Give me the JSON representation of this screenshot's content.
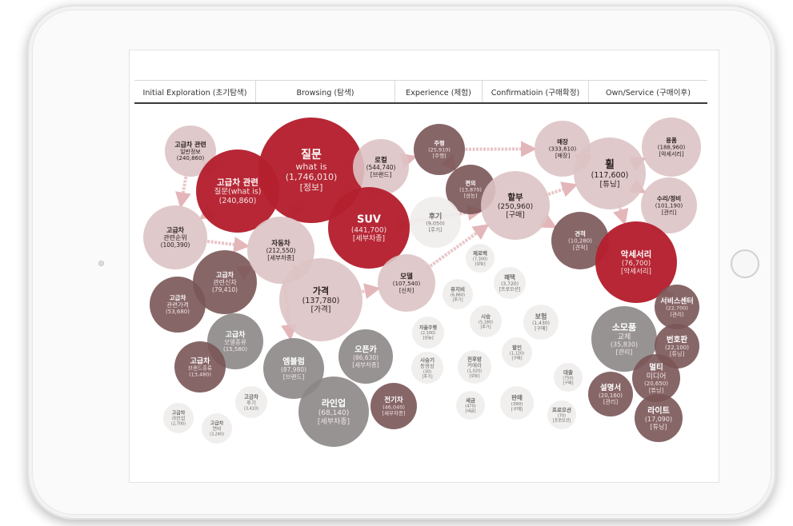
{
  "colors": {
    "crimson": "#b5202e",
    "dark_mauve": "#7a5556",
    "gray": "#8c8787",
    "pink": "#ddc3c4",
    "light_gray": "#efecec",
    "arrow": "#e8c5c8"
  },
  "stages": [
    {
      "label": "Initial Exploration (초기탐색)"
    },
    {
      "label": "Browsing (탐색)"
    },
    {
      "label": "Experience (체험)"
    },
    {
      "label": "Confirmatioin (구매확정)"
    },
    {
      "label": "Own/Service (구매이후)"
    }
  ],
  "bubbles": [
    {
      "id": "b1",
      "fill": "pink",
      "lines": [
        "고급차 관련",
        "일반정보",
        "(240,860)"
      ]
    },
    {
      "id": "b2",
      "fill": "crimson",
      "lines": [
        "고급차 관련",
        "질문(what is)",
        "(240,860)"
      ]
    },
    {
      "id": "b3",
      "fill": "crimson",
      "lines": [
        "질문",
        "what is",
        "(1,746,010)",
        "[정보]"
      ]
    },
    {
      "id": "b4",
      "fill": "pink",
      "lines": [
        "고급차",
        "관련순위",
        "(100,390)"
      ]
    },
    {
      "id": "b5",
      "fill": "dark_mauve",
      "lines": [
        "고급차",
        "관련신차",
        "(79,410)"
      ]
    },
    {
      "id": "b6",
      "fill": "dark_mauve",
      "lines": [
        "고급차",
        "관련가격",
        "(53,680)"
      ]
    },
    {
      "id": "b7",
      "fill": "gray",
      "lines": [
        "고급차",
        "모델종류",
        "(15,580)"
      ]
    },
    {
      "id": "b8",
      "fill": "dark_mauve",
      "lines": [
        "고급차",
        "브랜드종류",
        "(13,480)"
      ]
    },
    {
      "id": "b9",
      "fill": "light_gray",
      "lines": [
        "고급차",
        "후기",
        "(3,410)"
      ]
    },
    {
      "id": "b10",
      "fill": "light_gray",
      "lines": [
        "고급차",
        "라인업",
        "(2,700)"
      ]
    },
    {
      "id": "b11",
      "fill": "light_gray",
      "lines": [
        "고급차",
        "연비",
        "(3,240)"
      ]
    },
    {
      "id": "b12",
      "fill": "pink",
      "lines": [
        "로컬",
        "(544,740)",
        "[브랜드]"
      ]
    },
    {
      "id": "b13",
      "fill": "pink",
      "lines": [
        "자동차",
        "(212,550)",
        "[세부차종]"
      ]
    },
    {
      "id": "b14",
      "fill": "crimson",
      "lines": [
        "SUV",
        "(441,700)",
        "[세부차종]"
      ]
    },
    {
      "id": "b15",
      "fill": "pink",
      "lines": [
        "가격",
        "(137,780)",
        "[가격]"
      ]
    },
    {
      "id": "b16",
      "fill": "gray",
      "lines": [
        "엠블럼",
        "(87,980)",
        "[브랜드]"
      ]
    },
    {
      "id": "b17",
      "fill": "gray",
      "lines": [
        "오픈카",
        "(86,630)",
        "[세부차종]"
      ]
    },
    {
      "id": "b18",
      "fill": "gray",
      "lines": [
        "라인업",
        "(68,140)",
        "[세부차종]"
      ]
    },
    {
      "id": "b19",
      "fill": "dark_mauve",
      "lines": [
        "전기차",
        "(46,040)",
        "[세부차종]"
      ]
    },
    {
      "id": "b20",
      "fill": "dark_mauve",
      "lines": [
        "주행",
        "(25,910)",
        "[주행]"
      ]
    },
    {
      "id": "b21",
      "fill": "dark_mauve",
      "lines": [
        "편의",
        "(13,870)",
        "[성능]"
      ]
    },
    {
      "id": "b22",
      "fill": "light_gray",
      "lines": [
        "후기",
        "(9,050)",
        "[후기]"
      ]
    },
    {
      "id": "b23",
      "fill": "pink",
      "lines": [
        "모델",
        "(107,540)",
        "[신차]"
      ]
    },
    {
      "id": "b24",
      "fill": "light_gray",
      "lines": [
        "제로백",
        "(7,300)",
        "[성능]"
      ]
    },
    {
      "id": "b25",
      "fill": "light_gray",
      "lines": [
        "혜택",
        "(3,720)",
        "[프로모션]"
      ]
    },
    {
      "id": "b26",
      "fill": "light_gray",
      "lines": [
        "유지비",
        "(6,860)",
        "[후기]"
      ]
    },
    {
      "id": "b27",
      "fill": "light_gray",
      "lines": [
        "자율주행",
        "(2,100)",
        "[성능]"
      ]
    },
    {
      "id": "b28",
      "fill": "light_gray",
      "lines": [
        "시승",
        "(5,180)",
        "[후기]"
      ]
    },
    {
      "id": "b29",
      "fill": "light_gray",
      "lines": [
        "보험",
        "(1,430)",
        "[구매]"
      ]
    },
    {
      "id": "b30",
      "fill": "light_gray",
      "lines": [
        "할인",
        "(1,120)",
        "[구매]"
      ]
    },
    {
      "id": "b31",
      "fill": "light_gray",
      "lines": [
        "시승기",
        "동영상",
        "(30)",
        "[후기]"
      ]
    },
    {
      "id": "b32",
      "fill": "light_gray",
      "lines": [
        "전후방",
        "카메라",
        "(1,020)",
        "[성능]"
      ]
    },
    {
      "id": "b33",
      "fill": "light_gray",
      "lines": [
        "대출",
        "(750)",
        "[구매]"
      ]
    },
    {
      "id": "b34",
      "fill": "light_gray",
      "lines": [
        "세금",
        "(470)",
        "[세금]"
      ]
    },
    {
      "id": "b35",
      "fill": "light_gray",
      "lines": [
        "판매",
        "(390)",
        "[구매]"
      ]
    },
    {
      "id": "b36",
      "fill": "light_gray",
      "lines": [
        "프로모션",
        "(70)",
        "[프로모션]"
      ]
    },
    {
      "id": "b37",
      "fill": "pink",
      "lines": [
        "할부",
        "(250,960)",
        "[구매]"
      ]
    },
    {
      "id": "b38",
      "fill": "pink",
      "lines": [
        "매장",
        "(333,610)",
        "[매장]"
      ]
    },
    {
      "id": "b39",
      "fill": "pink",
      "lines": [
        "휠",
        "(117,600)",
        "[튜닝]"
      ]
    },
    {
      "id": "b40",
      "fill": "dark_mauve",
      "lines": [
        "견적",
        "(10,280)",
        "[견적]"
      ]
    },
    {
      "id": "b41",
      "fill": "pink",
      "lines": [
        "용품",
        "(188,960)",
        "[악세서리]"
      ]
    },
    {
      "id": "b42",
      "fill": "pink",
      "lines": [
        "수리/정비",
        "(101,190)",
        "[관리]"
      ]
    },
    {
      "id": "b43",
      "fill": "crimson",
      "lines": [
        "악세서리",
        "(76,700)",
        "[악세서리]"
      ]
    },
    {
      "id": "b44",
      "fill": "dark_mauve",
      "lines": [
        "서비스센터",
        "(22,700)",
        "[관리]"
      ]
    },
    {
      "id": "b45",
      "fill": "gray",
      "lines": [
        "소모품",
        "교체",
        "(35,830)",
        "[관리]"
      ]
    },
    {
      "id": "b46",
      "fill": "dark_mauve",
      "lines": [
        "번호판",
        "(22,100)",
        "[튜닝]"
      ]
    },
    {
      "id": "b47",
      "fill": "dark_mauve",
      "lines": [
        "멀티",
        "미디어",
        "(20,650)",
        "[튜닝]"
      ]
    },
    {
      "id": "b48",
      "fill": "dark_mauve",
      "lines": [
        "설명서",
        "(20,160)",
        "[관리]"
      ]
    },
    {
      "id": "b49",
      "fill": "dark_mauve",
      "lines": [
        "라이트",
        "(17,090)",
        "[튜닝]"
      ]
    }
  ]
}
